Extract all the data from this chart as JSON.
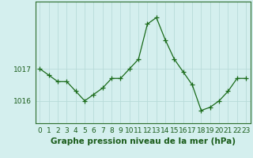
{
  "x": [
    0,
    1,
    2,
    3,
    4,
    5,
    6,
    7,
    8,
    9,
    10,
    11,
    12,
    13,
    14,
    15,
    16,
    17,
    18,
    19,
    20,
    21,
    22,
    23
  ],
  "y": [
    1017.0,
    1016.8,
    1016.6,
    1016.6,
    1016.3,
    1016.0,
    1016.2,
    1016.4,
    1016.7,
    1016.7,
    1017.0,
    1017.3,
    1018.4,
    1018.6,
    1017.9,
    1017.3,
    1016.9,
    1016.5,
    1015.7,
    1015.8,
    1016.0,
    1016.3,
    1016.7,
    1016.7
  ],
  "line_color": "#1a6b1a",
  "marker": "+",
  "markersize": 4,
  "linewidth": 0.9,
  "xlabel": "Graphe pression niveau de la mer (hPa)",
  "yticks": [
    1016,
    1017
  ],
  "ylim": [
    1015.3,
    1019.1
  ],
  "xlim": [
    -0.5,
    23.5
  ],
  "xtick_labels": [
    "0",
    "1",
    "2",
    "3",
    "4",
    "5",
    "6",
    "7",
    "8",
    "9",
    "10",
    "11",
    "12",
    "13",
    "14",
    "15",
    "16",
    "17",
    "18",
    "19",
    "20",
    "21",
    "22",
    "23"
  ],
  "bg_color": "#d4efee",
  "grid_color": "#b8dbd9",
  "xlabel_fontsize": 7.5,
  "tick_fontsize": 6.5,
  "label_color": "#1a5c1a",
  "axes_color": "#2d6e2d"
}
